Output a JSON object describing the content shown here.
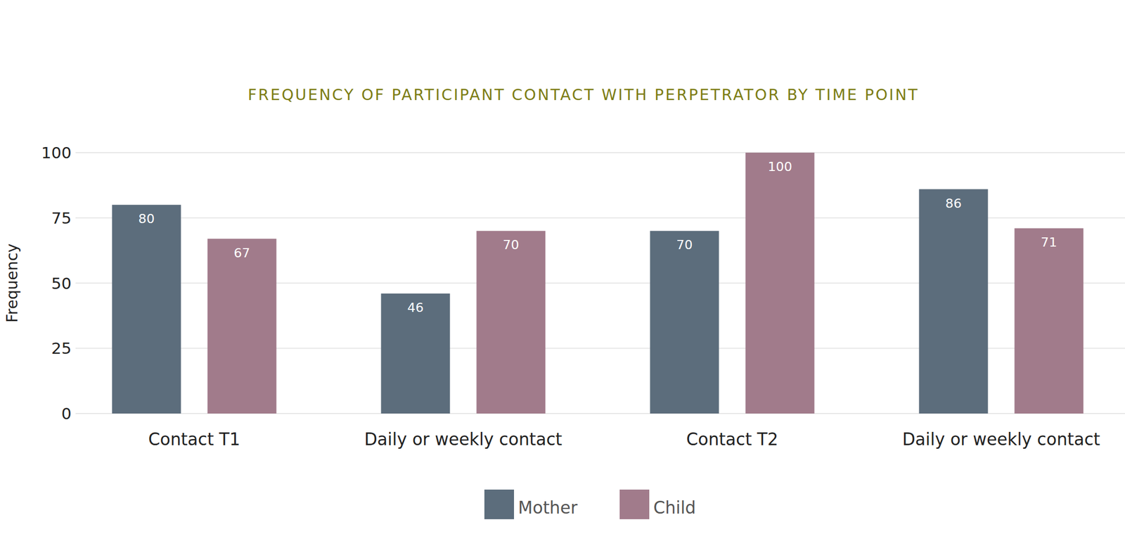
{
  "chart_data": {
    "type": "bar",
    "title": "FREQUENCY OF PARTICIPANT CONTACT WITH PERPETRATOR BY TIME POINT",
    "y_label": "Frequency",
    "categories": [
      "Contact T1",
      "Daily or weekly contact",
      "Contact T2",
      "Daily or weekly contact"
    ],
    "series": [
      {
        "name": "Mother",
        "color": "#5c6d7c",
        "values": [
          80,
          46,
          70,
          86
        ]
      },
      {
        "name": "Child",
        "color": "#a17b8b",
        "values": [
          67,
          70,
          100,
          71
        ]
      }
    ],
    "ylim": [
      0,
      100
    ],
    "yticks": [
      0,
      25,
      50,
      75,
      100
    ],
    "grid": true,
    "legend": "bottom",
    "data_labels": true
  }
}
